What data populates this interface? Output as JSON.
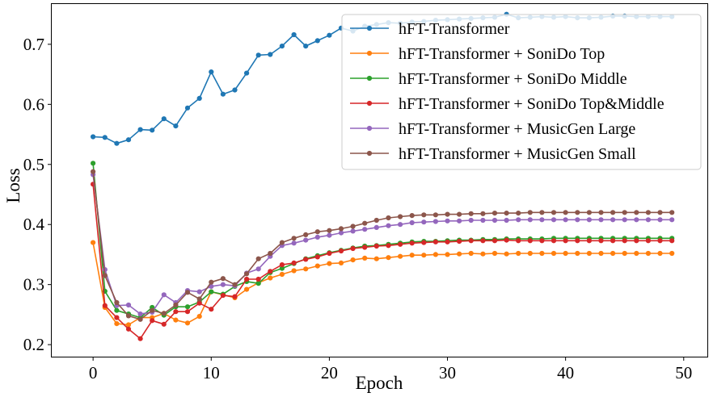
{
  "chart_data": {
    "type": "line",
    "title": "",
    "xlabel": "Epoch",
    "ylabel": "Loss",
    "xlim": [
      -3.5,
      52.0
    ],
    "ylim": [
      0.18,
      0.767
    ],
    "xticks": [
      0,
      10,
      20,
      30,
      40,
      50
    ],
    "yticks": [
      0.2,
      0.3,
      0.4,
      0.5,
      0.6,
      0.7
    ],
    "grid": false,
    "legend_position": "top-right",
    "x": [
      0,
      1,
      2,
      3,
      4,
      5,
      6,
      7,
      8,
      9,
      10,
      11,
      12,
      13,
      14,
      15,
      16,
      17,
      18,
      19,
      20,
      21,
      22,
      23,
      24,
      25,
      26,
      27,
      28,
      29,
      30,
      31,
      32,
      33,
      34,
      35,
      36,
      37,
      38,
      39,
      40,
      41,
      42,
      43,
      44,
      45,
      46,
      47,
      48,
      49
    ],
    "series": [
      {
        "name": "hFT-Transformer",
        "color": "#1f77b4",
        "values": [
          0.546,
          0.545,
          0.535,
          0.541,
          0.558,
          0.557,
          0.576,
          0.564,
          0.594,
          0.61,
          0.654,
          0.617,
          0.624,
          0.652,
          0.682,
          0.683,
          0.697,
          0.716,
          0.697,
          0.706,
          0.715,
          0.727,
          0.722,
          0.73,
          0.733,
          0.736,
          0.735,
          0.737,
          0.738,
          0.74,
          0.741,
          0.742,
          0.743,
          0.744,
          0.745,
          0.75,
          0.744,
          0.745,
          0.746,
          0.745,
          0.746,
          0.744,
          0.744,
          0.745,
          0.747,
          0.747,
          0.746,
          0.746,
          0.746,
          0.746
        ]
      },
      {
        "name": "hFT-Transformer + SoniDo Top",
        "color": "#ff7f0e",
        "values": [
          0.37,
          0.262,
          0.235,
          0.233,
          0.245,
          0.245,
          0.252,
          0.241,
          0.236,
          0.247,
          0.288,
          0.283,
          0.278,
          0.292,
          0.303,
          0.311,
          0.317,
          0.323,
          0.326,
          0.331,
          0.335,
          0.336,
          0.341,
          0.344,
          0.343,
          0.345,
          0.347,
          0.349,
          0.349,
          0.35,
          0.35,
          0.351,
          0.352,
          0.351,
          0.352,
          0.351,
          0.352,
          0.352,
          0.352,
          0.352,
          0.352,
          0.352,
          0.352,
          0.352,
          0.352,
          0.352,
          0.352,
          0.352,
          0.352,
          0.352
        ]
      },
      {
        "name": "hFT-Transformer + SoniDo Middle",
        "color": "#2ca02c",
        "values": [
          0.502,
          0.289,
          0.257,
          0.251,
          0.245,
          0.262,
          0.249,
          0.263,
          0.263,
          0.271,
          0.288,
          0.284,
          0.297,
          0.305,
          0.302,
          0.32,
          0.327,
          0.335,
          0.343,
          0.348,
          0.353,
          0.357,
          0.361,
          0.364,
          0.365,
          0.367,
          0.369,
          0.371,
          0.372,
          0.372,
          0.373,
          0.374,
          0.374,
          0.375,
          0.375,
          0.376,
          0.376,
          0.376,
          0.376,
          0.377,
          0.377,
          0.377,
          0.377,
          0.377,
          0.377,
          0.377,
          0.377,
          0.377,
          0.377,
          0.377
        ]
      },
      {
        "name": "hFT-Transformer + SoniDo Top&Middle",
        "color": "#d62728",
        "values": [
          0.467,
          0.265,
          0.245,
          0.226,
          0.21,
          0.24,
          0.234,
          0.255,
          0.255,
          0.269,
          0.259,
          0.282,
          0.28,
          0.309,
          0.309,
          0.322,
          0.333,
          0.336,
          0.342,
          0.346,
          0.352,
          0.356,
          0.36,
          0.362,
          0.364,
          0.365,
          0.367,
          0.369,
          0.37,
          0.371,
          0.371,
          0.372,
          0.373,
          0.373,
          0.373,
          0.374,
          0.373,
          0.373,
          0.373,
          0.373,
          0.373,
          0.373,
          0.373,
          0.373,
          0.373,
          0.373,
          0.373,
          0.373,
          0.373,
          0.373
        ]
      },
      {
        "name": "hFT-Transformer + MusicGen Large",
        "color": "#9467bd",
        "values": [
          0.483,
          0.325,
          0.265,
          0.266,
          0.251,
          0.254,
          0.283,
          0.27,
          0.29,
          0.288,
          0.297,
          0.3,
          0.298,
          0.319,
          0.326,
          0.347,
          0.365,
          0.369,
          0.374,
          0.379,
          0.382,
          0.386,
          0.389,
          0.392,
          0.395,
          0.398,
          0.4,
          0.403,
          0.404,
          0.405,
          0.406,
          0.406,
          0.407,
          0.407,
          0.407,
          0.407,
          0.408,
          0.408,
          0.408,
          0.408,
          0.408,
          0.408,
          0.408,
          0.408,
          0.408,
          0.408,
          0.408,
          0.408,
          0.408,
          0.408
        ]
      },
      {
        "name": "hFT-Transformer + MusicGen Small",
        "color": "#8c564b",
        "values": [
          0.488,
          0.315,
          0.27,
          0.248,
          0.242,
          0.257,
          0.252,
          0.266,
          0.287,
          0.276,
          0.304,
          0.31,
          0.3,
          0.318,
          0.343,
          0.352,
          0.37,
          0.377,
          0.383,
          0.388,
          0.39,
          0.393,
          0.397,
          0.402,
          0.407,
          0.411,
          0.413,
          0.415,
          0.416,
          0.416,
          0.417,
          0.417,
          0.418,
          0.418,
          0.419,
          0.419,
          0.419,
          0.42,
          0.42,
          0.42,
          0.42,
          0.42,
          0.42,
          0.42,
          0.42,
          0.42,
          0.42,
          0.42,
          0.42,
          0.42
        ]
      }
    ]
  }
}
